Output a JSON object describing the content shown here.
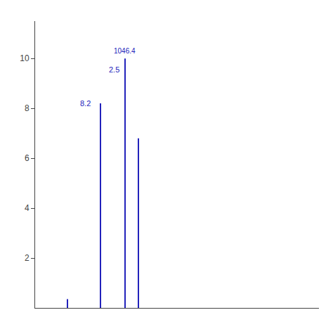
{
  "chart_data": {
    "type": "stem",
    "x": [
      719.5,
      1046.4,
      1284.7,
      1420.6
    ],
    "values": [
      0.35,
      8.2,
      10.0,
      6.8
    ],
    "color": "#2222bb",
    "xlim": [
      400,
      3200
    ],
    "ylim": [
      0,
      11.5
    ],
    "yticks": [
      2,
      4,
      6,
      8,
      10
    ],
    "grid": false,
    "tick_labels": "y",
    "annotations": [
      {
        "text": "8.2",
        "x": 1046.4,
        "y": 8.2
      },
      {
        "text": "2.5",
        "x": 1284.7,
        "y": 10.0
      },
      {
        "text": "1046.4",
        "x": 1284.7,
        "y": 10.0
      }
    ]
  }
}
